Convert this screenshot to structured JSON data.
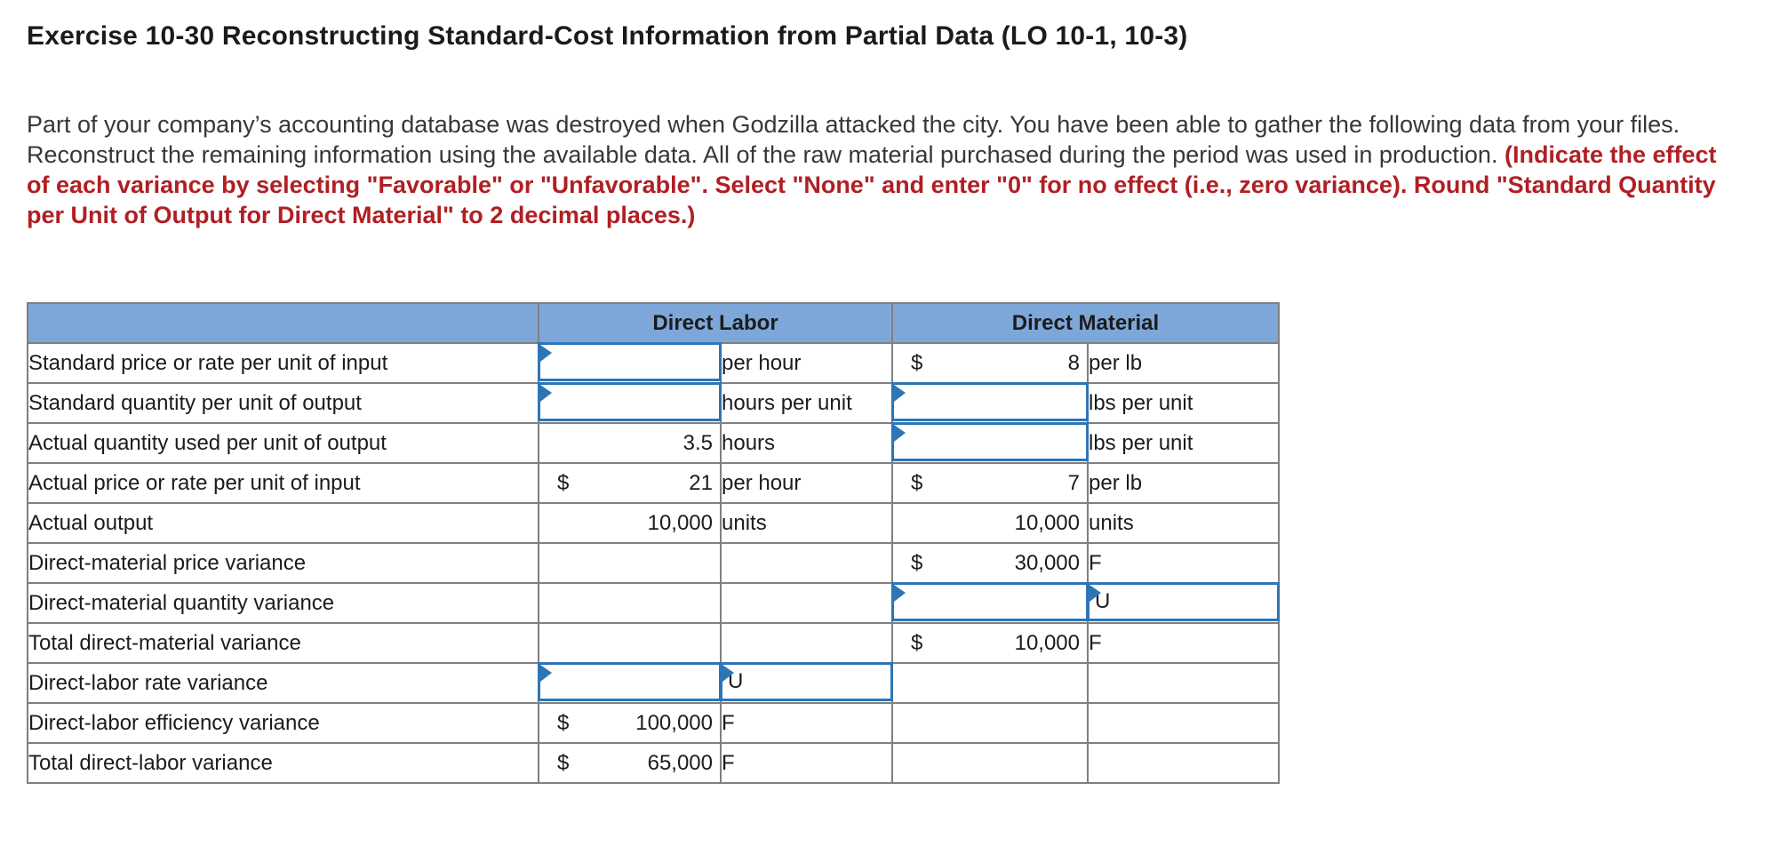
{
  "title": "Exercise 10-30 Reconstructing Standard-Cost Information from Partial Data (LO 10-1, 10-3)",
  "intro": {
    "plain": "Part of your company’s accounting database was destroyed when Godzilla attacked the city. You have been able to gather the following data from your files. Reconstruct the remaining information using the available data. All of the raw material purchased during the period was used in production. ",
    "emphasis": "(Indicate the effect of each variance by selecting \"Favorable\" or \"Unfavorable\". Select \"None\" and enter \"0\" for no effect (i.e., zero variance). Round \"Standard Quantity per Unit of Output for Direct Material\" to 2 decimal places.)"
  },
  "colors": {
    "header_blue": "#7DA7D9",
    "input_border_blue": "#2E75B6",
    "grid_gray": "#808080",
    "red_text": "#b01f24"
  },
  "table": {
    "headers": [
      "",
      "Direct Labor",
      "Direct Material"
    ],
    "rows": [
      {
        "label": "Standard price or rate per unit of input",
        "cells": [
          {
            "kind": "input"
          },
          {
            "kind": "unit",
            "text": "per hour"
          },
          {
            "kind": "amount",
            "dollar": "$",
            "value": "8"
          },
          {
            "kind": "unit",
            "text": "per lb"
          }
        ]
      },
      {
        "label": "Standard quantity per unit of output",
        "cells": [
          {
            "kind": "input"
          },
          {
            "kind": "unit",
            "text": "hours per unit"
          },
          {
            "kind": "input"
          },
          {
            "kind": "unit",
            "text": "lbs per unit"
          }
        ]
      },
      {
        "label": "Actual quantity used per unit of output",
        "cells": [
          {
            "kind": "amount",
            "value": "3.5"
          },
          {
            "kind": "unit",
            "text": "hours"
          },
          {
            "kind": "input"
          },
          {
            "kind": "unit",
            "text": "lbs per unit"
          }
        ]
      },
      {
        "label": "Actual price or rate per unit of input",
        "cells": [
          {
            "kind": "amount",
            "dollar": "$",
            "value": "21"
          },
          {
            "kind": "unit",
            "text": "per hour"
          },
          {
            "kind": "amount",
            "dollar": "$",
            "value": "7"
          },
          {
            "kind": "unit",
            "text": "per lb"
          }
        ]
      },
      {
        "label": "Actual output",
        "cells": [
          {
            "kind": "amount",
            "value": "10,000"
          },
          {
            "kind": "unit",
            "text": "units"
          },
          {
            "kind": "amount",
            "value": "10,000"
          },
          {
            "kind": "unit",
            "text": "units"
          }
        ]
      },
      {
        "label": "Direct-material price variance",
        "cells": [
          {
            "kind": "empty"
          },
          {
            "kind": "empty"
          },
          {
            "kind": "amount",
            "dollar": "$",
            "value": "30,000"
          },
          {
            "kind": "unit",
            "text": "F"
          }
        ]
      },
      {
        "label": "Direct-material quantity variance",
        "cells": [
          {
            "kind": "empty"
          },
          {
            "kind": "empty"
          },
          {
            "kind": "input"
          },
          {
            "kind": "input",
            "value": "U"
          }
        ]
      },
      {
        "label": "Total direct-material variance",
        "cells": [
          {
            "kind": "empty"
          },
          {
            "kind": "empty"
          },
          {
            "kind": "amount",
            "dollar": "$",
            "value": "10,000"
          },
          {
            "kind": "unit",
            "text": "F"
          }
        ]
      },
      {
        "label": "Direct-labor rate variance",
        "cells": [
          {
            "kind": "input"
          },
          {
            "kind": "input",
            "value": "U"
          },
          {
            "kind": "empty"
          },
          {
            "kind": "empty"
          }
        ]
      },
      {
        "label": "Direct-labor efficiency variance",
        "cells": [
          {
            "kind": "amount",
            "dollar": "$",
            "value": "100,000"
          },
          {
            "kind": "unit",
            "text": "F"
          },
          {
            "kind": "empty"
          },
          {
            "kind": "empty"
          }
        ]
      },
      {
        "label": "Total direct-labor variance",
        "cells": [
          {
            "kind": "amount",
            "dollar": "$",
            "value": "65,000"
          },
          {
            "kind": "unit",
            "text": "F"
          },
          {
            "kind": "empty"
          },
          {
            "kind": "empty"
          }
        ]
      }
    ]
  }
}
